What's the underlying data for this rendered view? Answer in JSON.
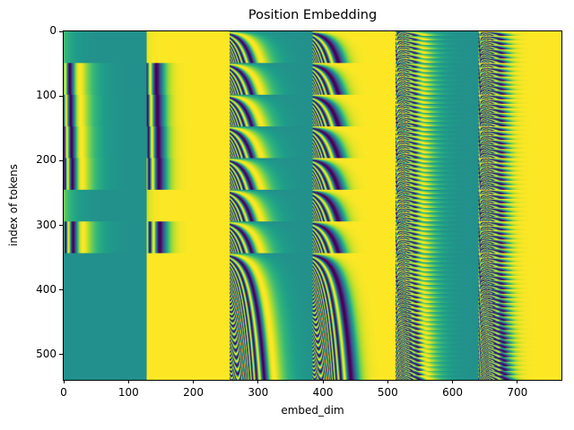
{
  "chart_data": {
    "type": "heatmap",
    "title": "Position Embedding",
    "xlabel": "embed_dim",
    "ylabel": "index of tokens",
    "xlim": [
      0,
      768
    ],
    "ylim": [
      539,
      0
    ],
    "x_ticks": [
      "0",
      "100",
      "200",
      "300",
      "400",
      "500",
      "600",
      "700"
    ],
    "y_ticks": [
      "0",
      "100",
      "200",
      "300",
      "400",
      "500"
    ],
    "colormap": "viridis",
    "value_range": [
      -1,
      1
    ],
    "grid": false
  }
}
